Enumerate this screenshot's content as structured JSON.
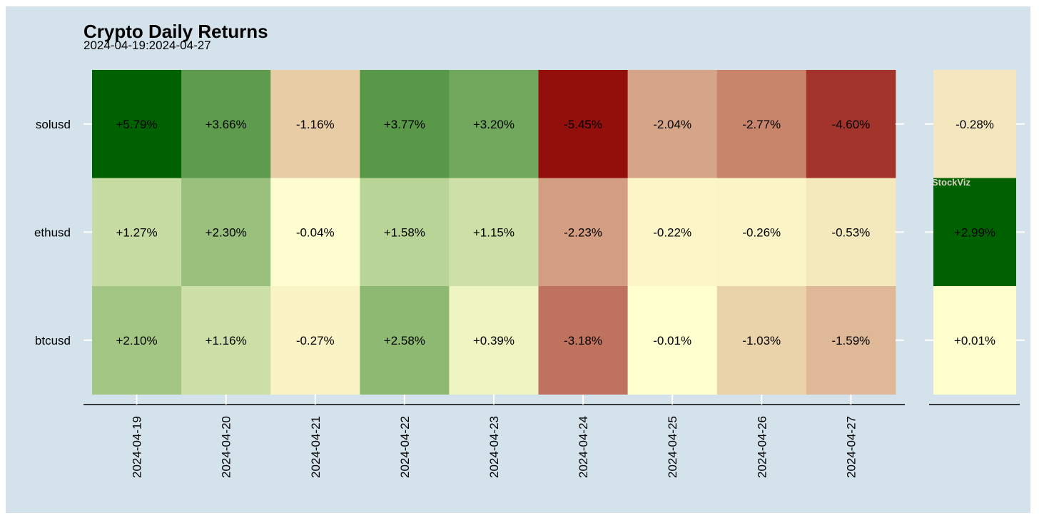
{
  "chart_data": {
    "type": "heatmap",
    "title": "Crypto Daily Returns",
    "subtitle": "2024-04-19:2024-04-27",
    "watermark": "StockViz",
    "rows": [
      "solusd",
      "ethusd",
      "btcusd"
    ],
    "columns": [
      "2024-04-19",
      "2024-04-20",
      "2024-04-21",
      "2024-04-22",
      "2024-04-23",
      "2024-04-24",
      "2024-04-25",
      "2024-04-26",
      "2024-04-27"
    ],
    "values": [
      [
        5.79,
        3.66,
        -1.16,
        3.77,
        3.2,
        -5.45,
        -2.04,
        -2.77,
        -4.6
      ],
      [
        1.27,
        2.3,
        -0.04,
        1.58,
        1.15,
        -2.23,
        -0.22,
        -0.26,
        -0.53
      ],
      [
        2.1,
        1.16,
        -0.27,
        2.58,
        0.39,
        -3.18,
        -0.01,
        -1.03,
        -1.59
      ]
    ],
    "labels": [
      [
        "+5.79%",
        "+3.66%",
        "-1.16%",
        "+3.77%",
        "+3.20%",
        "-5.45%",
        "-2.04%",
        "-2.77%",
        "-4.60%"
      ],
      [
        "+1.27%",
        "+2.30%",
        "-0.04%",
        "+1.58%",
        "+1.15%",
        "-2.23%",
        "-0.22%",
        "-0.26%",
        "-0.53%"
      ],
      [
        "+2.10%",
        "+1.16%",
        "-0.27%",
        "+2.58%",
        "+0.39%",
        "-3.18%",
        "-0.01%",
        "-1.03%",
        "-1.59%"
      ]
    ],
    "summary": {
      "values": [
        -0.28,
        2.99,
        0.01
      ],
      "labels": [
        "-0.28%",
        "+2.99%",
        "+0.01%"
      ]
    },
    "colors": {
      "background": "#d4e3eb",
      "high": "#006100",
      "mid": "#ffffd0",
      "low": "#8b0000",
      "panel": "#ffffff"
    }
  }
}
